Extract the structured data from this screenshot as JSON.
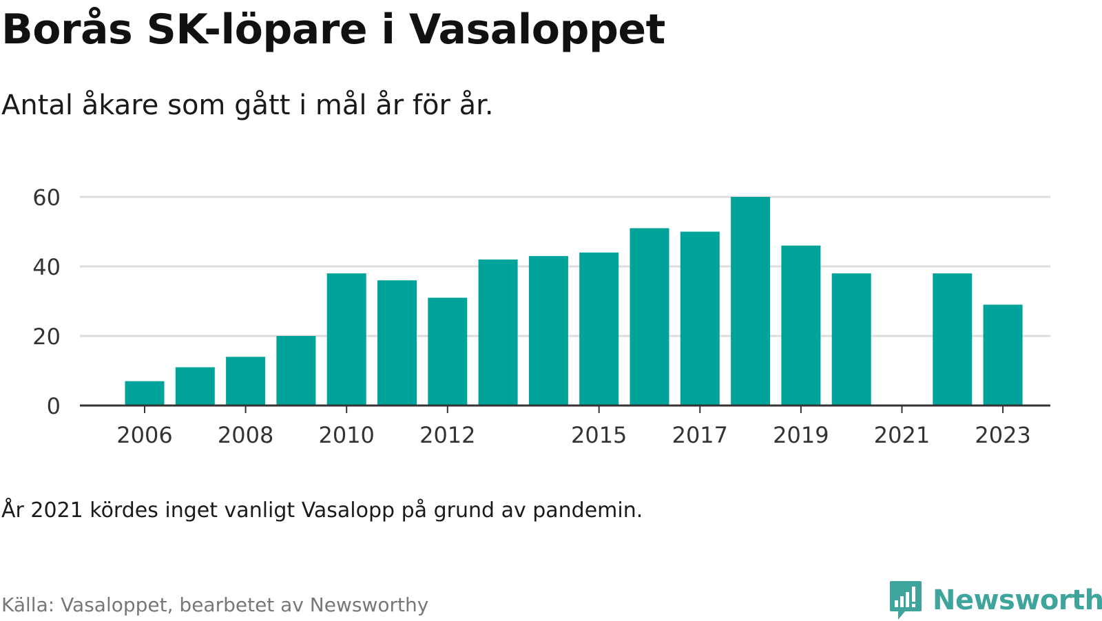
{
  "title": "Borås SK-löpare i Vasaloppet",
  "subtitle": "Antal åkare som gått i mål år för år.",
  "note": "År 2021 kördes inget vanligt Vasalopp på grund av pandemin.",
  "source": "Källa: Vasaloppet, bearbetet av Newsworthy",
  "logo": {
    "text": "Newsworthy",
    "icon": "newsworthy-bar-chart-icon",
    "color": "#3fa59c"
  },
  "colors": {
    "bar": "#00a39a",
    "grid": "#dddddd",
    "axis": "#333333",
    "text": "#333333"
  },
  "chart_data": {
    "type": "bar",
    "categories": [
      2006,
      2007,
      2008,
      2009,
      2010,
      2011,
      2012,
      2013,
      2014,
      2015,
      2016,
      2017,
      2018,
      2019,
      2020,
      2021,
      2022,
      2023
    ],
    "values": [
      7,
      11,
      14,
      20,
      38,
      36,
      31,
      42,
      43,
      44,
      51,
      50,
      60,
      46,
      38,
      null,
      38,
      29
    ],
    "x_tick_labels": [
      "2006",
      "2008",
      "2010",
      "2012",
      "2015",
      "2017",
      "2019",
      "2021",
      "2023"
    ],
    "y_tick_labels": [
      "0",
      "20",
      "40",
      "60"
    ],
    "ylim": [
      0,
      60
    ],
    "grid": true,
    "xlabel": "",
    "ylabel": ""
  }
}
